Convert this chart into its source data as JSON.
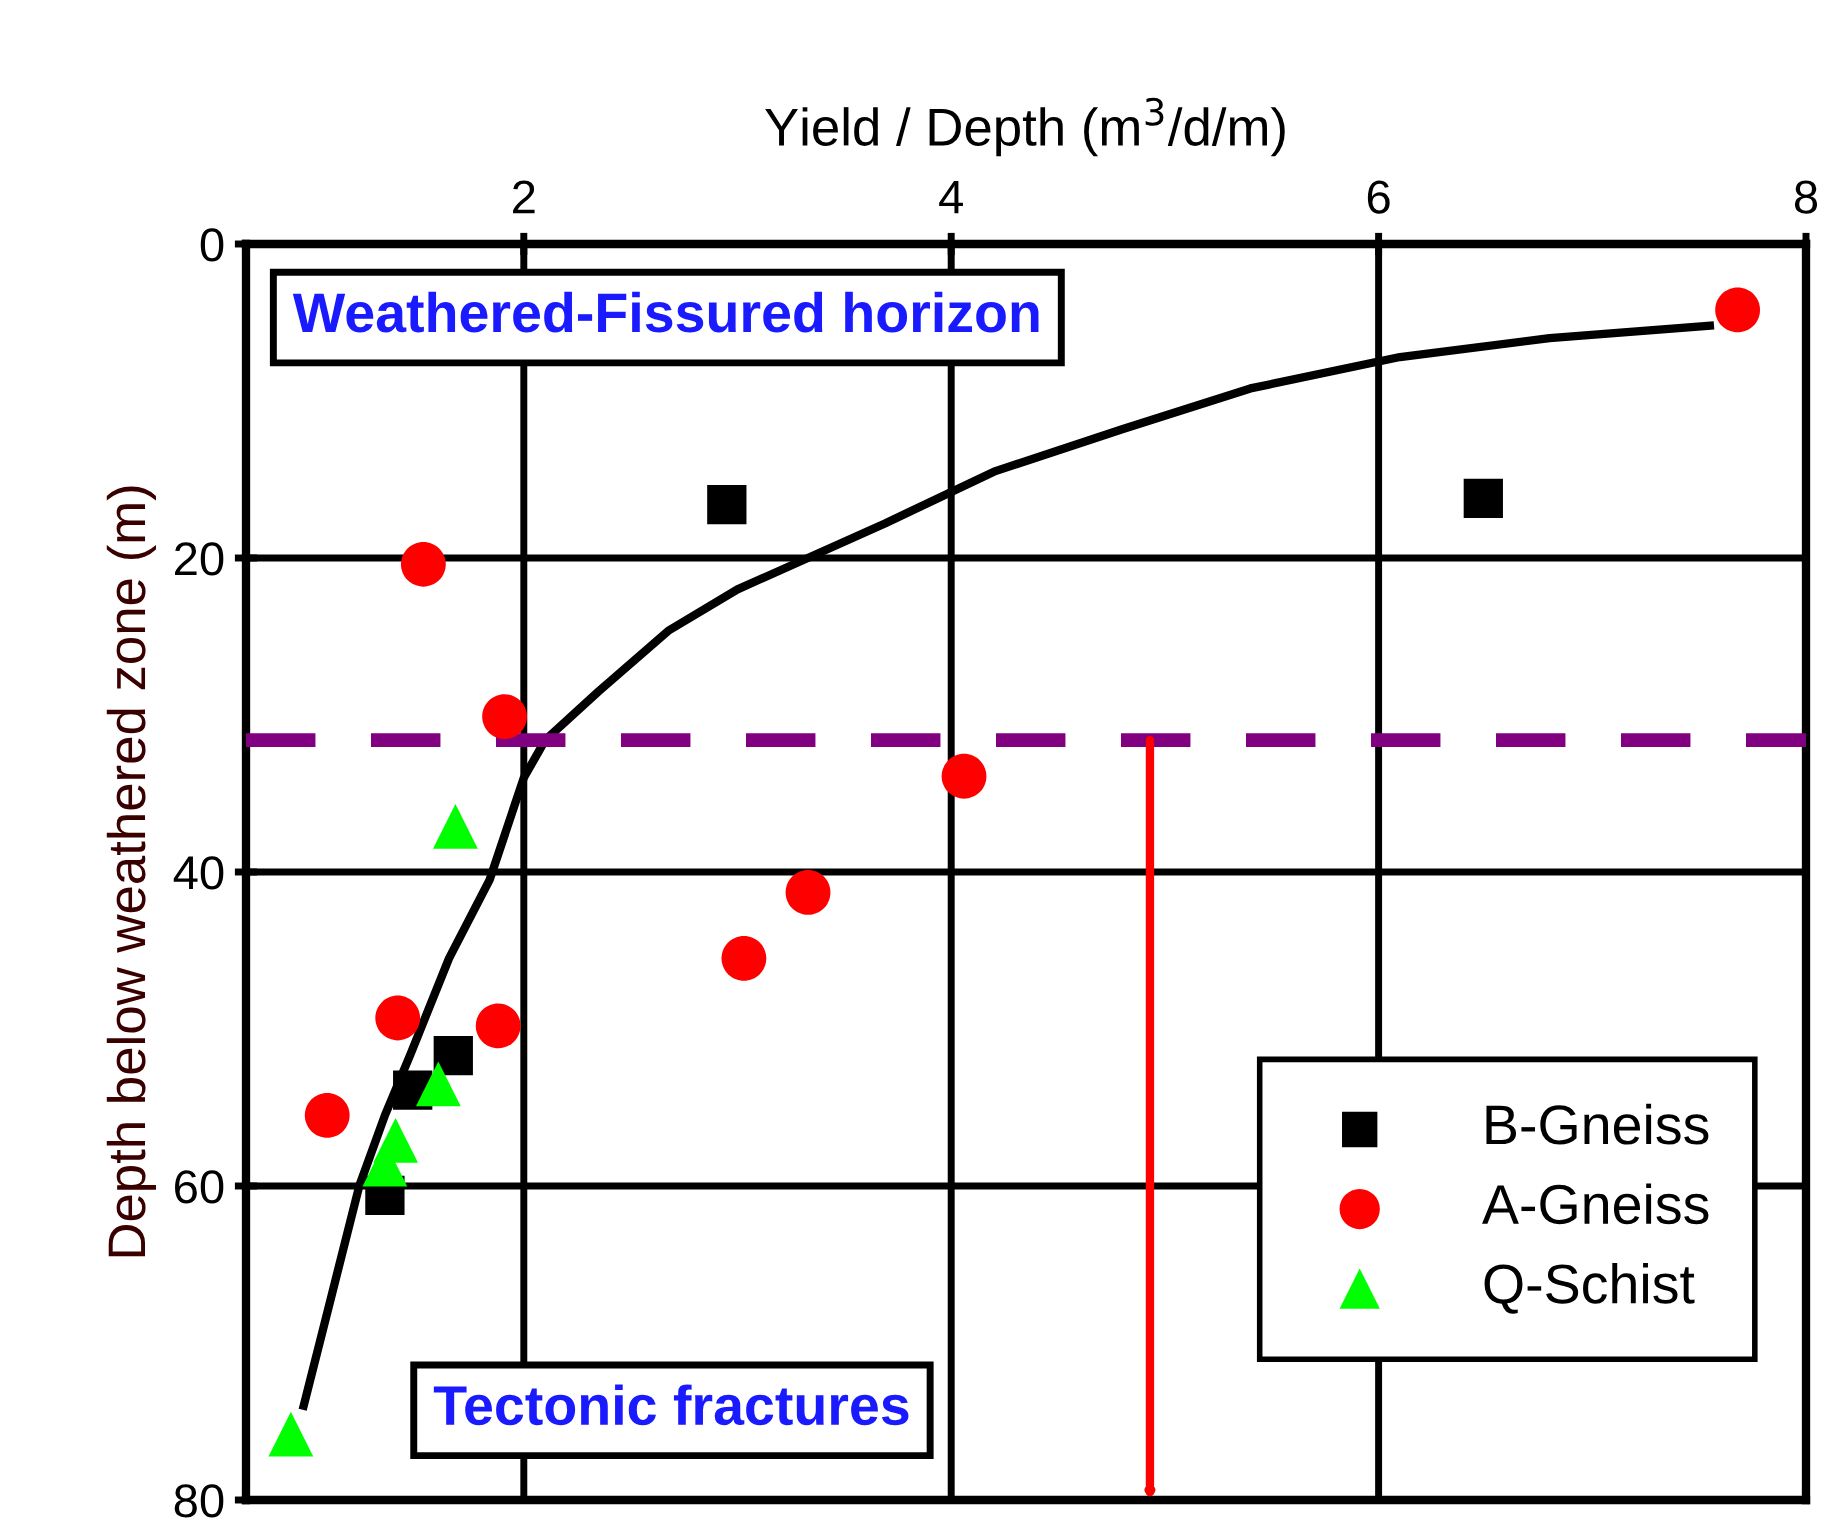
{
  "chart_data": {
    "type": "scatter",
    "xlabel": "Yield / Depth (m$^{3}$/d/m)",
    "ylabel": "Depth below weathered zone (m)",
    "xlim": [
      0.7,
      8
    ],
    "xticks": [
      2,
      4,
      6,
      8
    ],
    "ylim": [
      80,
      0
    ],
    "yticks": [
      0,
      20,
      40,
      60,
      80
    ],
    "grid": true,
    "legend": "bottom right",
    "series": [
      {
        "name": "B-Gneiss",
        "color": "#000000",
        "marker": "square",
        "x": [
          2.95,
          6.49,
          1.67,
          1.48,
          1.35
        ],
        "values": [
          16.6,
          16.2,
          51.7,
          53.9,
          60.6
        ]
      },
      {
        "name": "A-Gneiss",
        "color": "#ff0000",
        "marker": "circle",
        "x": [
          7.68,
          1.53,
          1.91,
          4.06,
          3.33,
          3.03,
          1.41,
          1.88,
          1.08
        ],
        "values": [
          4.2,
          20.4,
          30.1,
          33.9,
          41.3,
          45.5,
          49.3,
          49.8,
          55.5
        ]
      },
      {
        "name": "Q-Schist",
        "color": "#00ff00",
        "marker": "triangle",
        "x": [
          1.68,
          1.6,
          1.4,
          1.35,
          0.91
        ],
        "values": [
          37.1,
          53.5,
          57.1,
          58.6,
          75.8
        ]
      },
      {
        "type": "line",
        "color": "#000000",
        "marker": "none",
        "x": [
          0.97,
          1.1,
          1.23,
          1.35,
          1.47,
          1.65,
          1.84,
          2.0,
          2.1,
          2.35,
          2.68,
          3.0,
          3.69,
          4.2,
          4.8,
          5.4,
          6.1,
          6.8,
          7.55
        ],
        "values": [
          74,
          67,
          60,
          55.5,
          51.6,
          45.5,
          40.5,
          34,
          31.6,
          28.5,
          24.6,
          22,
          17.8,
          14.5,
          11.8,
          9.2,
          7.2,
          6,
          5.2
        ]
      }
    ],
    "ref_lines": [
      {
        "axis": "y",
        "value": 31.6,
        "color": "#800080",
        "line_style": "dashed"
      }
    ],
    "annotations": [
      "Weathered-Fissured horizon",
      "Tectonic fractures"
    ]
  }
}
